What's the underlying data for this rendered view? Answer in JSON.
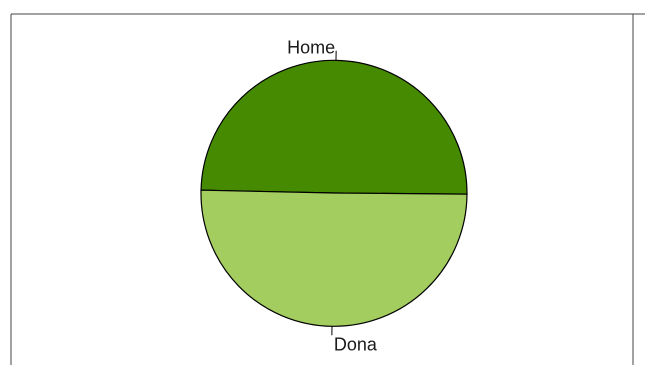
{
  "chart_data": {
    "type": "pie",
    "labels": [
      "Home",
      "Dona"
    ],
    "values": [
      49.8,
      50.2
    ],
    "colors": [
      "#458a00",
      "#a3cd5e"
    ],
    "title": "",
    "legend": "none",
    "slice_labels": "outside"
  }
}
